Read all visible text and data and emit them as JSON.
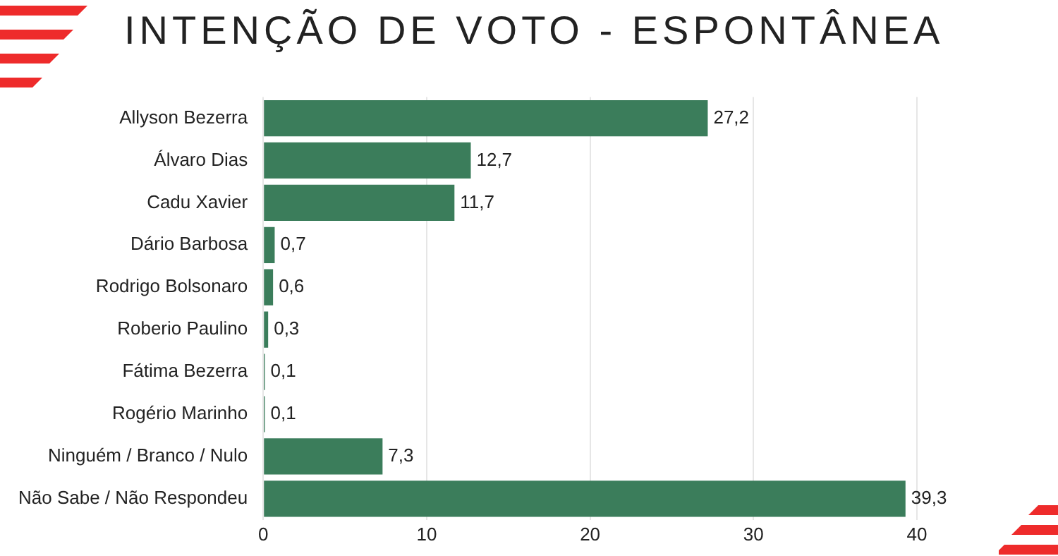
{
  "chart_data": {
    "type": "bar",
    "orientation": "horizontal",
    "title": "INTENÇÃO DE VOTO - ESPONTÂNEA",
    "categories": [
      "Allyson Bezerra",
      "Álvaro Dias",
      "Cadu Xavier",
      "Dário Barbosa",
      "Rodrigo Bolsonaro",
      "Roberio Paulino",
      "Fátima Bezerra",
      "Rogério Marinho",
      "Ninguém / Branco / Nulo",
      "Não Sabe / Não Respondeu"
    ],
    "values": [
      27.2,
      12.7,
      11.7,
      0.7,
      0.6,
      0.3,
      0.1,
      0.1,
      7.3,
      39.3
    ],
    "value_labels": [
      "27,2",
      "12,7",
      "11,7",
      "0,7",
      "0,6",
      "0,3",
      "0,1",
      "0,1",
      "7,3",
      "39,3"
    ],
    "color": "#3b7d5b",
    "xlim": [
      0,
      40
    ],
    "xticks": [
      0,
      10,
      20,
      30,
      40
    ],
    "grid": "x",
    "legend": false
  }
}
